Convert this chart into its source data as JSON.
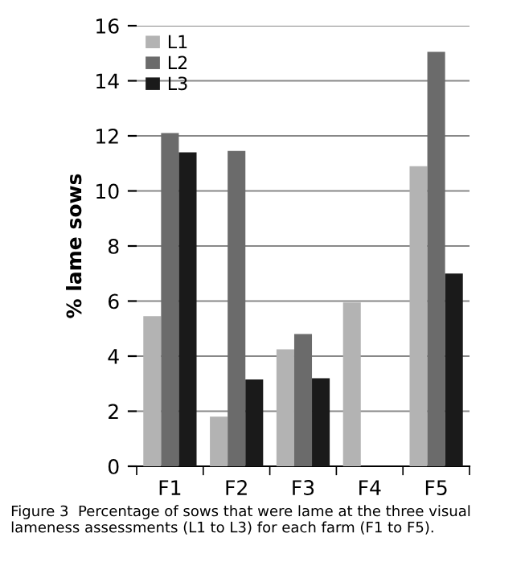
{
  "chart_data": {
    "type": "bar",
    "ylabel": "% lame sows",
    "categories": [
      "F1",
      "F2",
      "F3",
      "F4",
      "F5"
    ],
    "series": [
      {
        "name": "L1",
        "color": "#b3b3b3",
        "values": [
          5.45,
          1.8,
          4.25,
          5.95,
          10.9
        ]
      },
      {
        "name": "L2",
        "color": "#6b6b6b",
        "values": [
          12.1,
          11.45,
          4.8,
          0,
          15.05
        ]
      },
      {
        "name": "L3",
        "color": "#1a1a1a",
        "values": [
          11.4,
          3.15,
          3.2,
          0,
          7.0
        ]
      }
    ],
    "ylim": [
      0,
      16
    ],
    "yticks": [
      0,
      2,
      4,
      6,
      8,
      10,
      12,
      14,
      16
    ],
    "grid": "y",
    "legend": "top left",
    "annotations": [
      "Figure 3  Percentage of sows that were lame at the three visual lameness assessments (L1 to L3) for each farm (F1 to F5)."
    ]
  }
}
